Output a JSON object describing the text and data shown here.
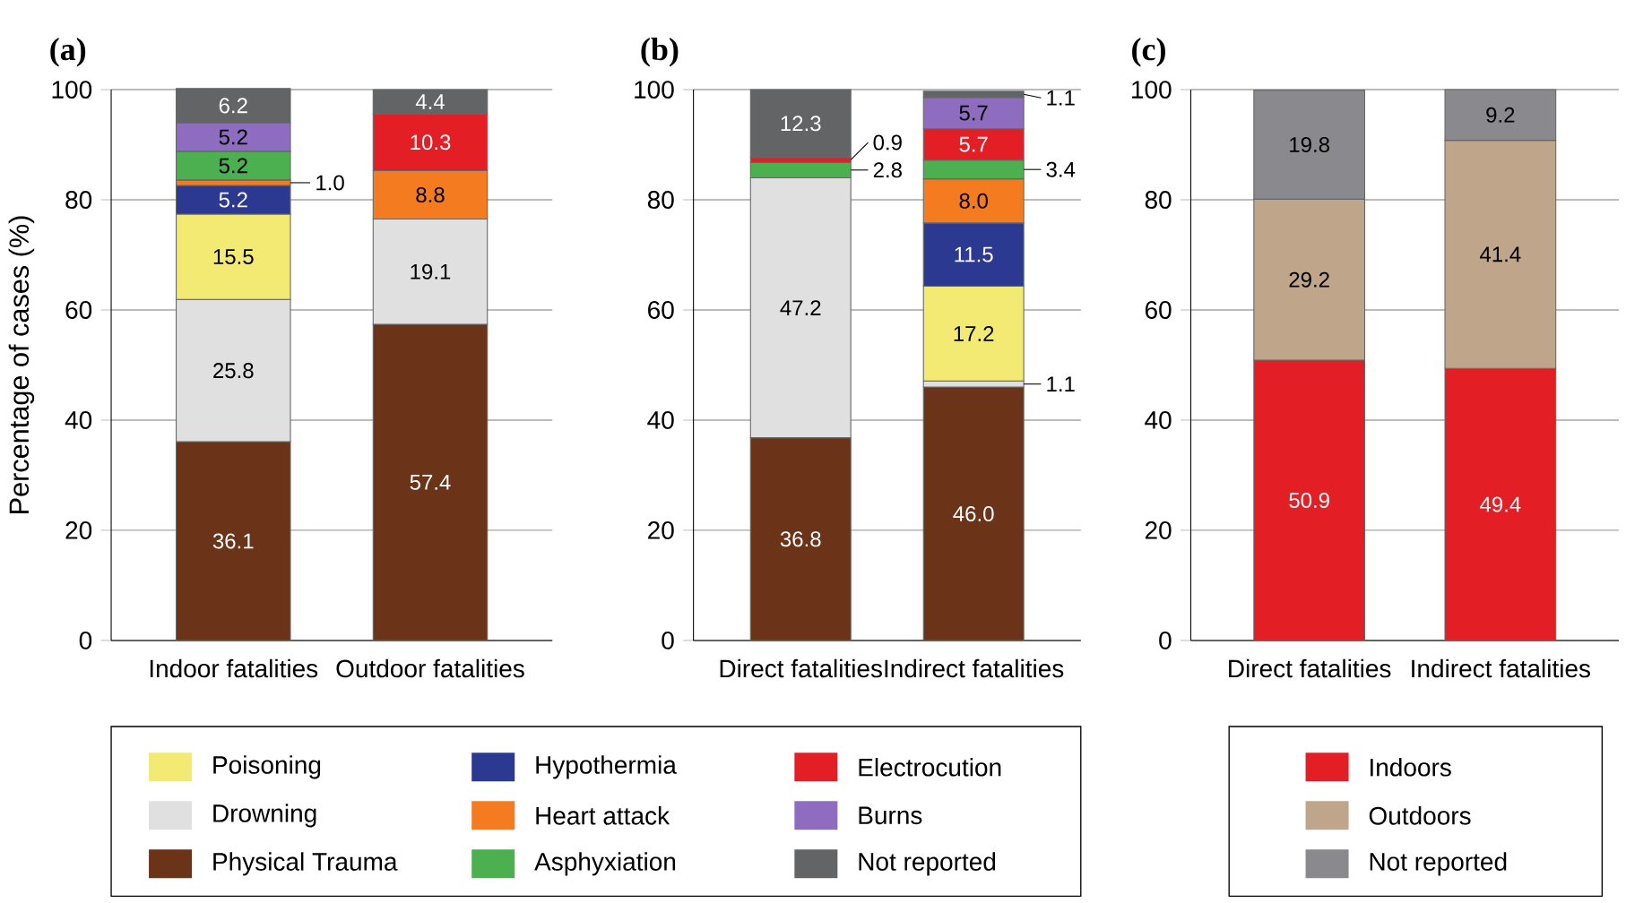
{
  "chart_data": [
    {
      "type": "bar",
      "stacked": true,
      "title": "(a)",
      "ylabel": "Percentage of cases (%)",
      "categories": [
        "Indoor fatalities",
        "Outdoor fatalities"
      ],
      "ylim": [
        0,
        100
      ],
      "yticks": [
        0,
        20,
        40,
        60,
        80,
        100
      ],
      "grid": "y",
      "legend": "bottom",
      "series": [
        {
          "name": "Physical Trauma",
          "color": "#6b3318",
          "values": [
            36.1,
            57.4
          ],
          "value_labels": [
            "36.1",
            "57.4"
          ]
        },
        {
          "name": "Drowning",
          "color": "#e0e0e0",
          "values": [
            25.8,
            19.1
          ],
          "value_labels": [
            "25.8",
            "19.1"
          ]
        },
        {
          "name": "Poisoning",
          "color": "#f2ea73",
          "values": [
            15.5,
            null
          ],
          "value_labels": [
            "15.5",
            null
          ]
        },
        {
          "name": "Hypothermia",
          "color": "#2b3990",
          "values": [
            5.2,
            null
          ],
          "value_labels": [
            "5.2",
            null
          ]
        },
        {
          "name": "Heart attack",
          "color": "#f47b20",
          "values": [
            1.0,
            8.8
          ],
          "value_labels": [
            "1.0",
            "8.8"
          ]
        },
        {
          "name": "Asphyxiation",
          "color": "#4caf50",
          "values": [
            5.2,
            null
          ],
          "value_labels": [
            "5.2",
            null
          ]
        },
        {
          "name": "Electrocution",
          "color": "#e31e24",
          "values": [
            null,
            10.3
          ],
          "value_labels": [
            null,
            "10.3"
          ]
        },
        {
          "name": "Burns",
          "color": "#8e6cc0",
          "values": [
            5.2,
            null
          ],
          "value_labels": [
            "5.2",
            null
          ]
        },
        {
          "name": "Not reported",
          "color": "#636466",
          "values": [
            6.2,
            4.4
          ],
          "value_labels": [
            "6.2",
            "4.4"
          ]
        }
      ]
    },
    {
      "type": "bar",
      "stacked": true,
      "title": "(b)",
      "categories": [
        "Direct fatalities",
        "Indirect fatalities"
      ],
      "ylim": [
        0,
        100
      ],
      "yticks": [
        0,
        20,
        40,
        60,
        80,
        100
      ],
      "grid": "y",
      "series": [
        {
          "color": "#6b3318",
          "values": [
            36.8,
            46.0
          ],
          "value_labels": [
            "36.8",
            "46.0"
          ]
        },
        {
          "color": "#e0e0e0",
          "values": [
            47.2,
            1.1
          ],
          "value_labels": [
            "47.2",
            "1.1"
          ]
        },
        {
          "color": "#f2ea73",
          "values": [
            null,
            17.2
          ],
          "value_labels": [
            null,
            "17.2"
          ]
        },
        {
          "color": "#2b3990",
          "values": [
            null,
            11.5
          ],
          "value_labels": [
            null,
            "11.5"
          ]
        },
        {
          "color": "#f47b20",
          "values": [
            null,
            8.0
          ],
          "value_labels": [
            null,
            "8.0"
          ]
        },
        {
          "color": "#4caf50",
          "values": [
            2.8,
            3.4
          ],
          "value_labels": [
            "2.8",
            "3.4"
          ]
        },
        {
          "color": "#e31e24",
          "values": [
            0.9,
            5.7
          ],
          "value_labels": [
            "0.9",
            "5.7"
          ]
        },
        {
          "color": "#8e6cc0",
          "values": [
            null,
            5.7
          ],
          "value_labels": [
            null,
            "5.7"
          ]
        },
        {
          "color": "#636466",
          "values": [
            12.3,
            1.1
          ],
          "value_labels": [
            "12.3",
            "1.1"
          ]
        }
      ]
    },
    {
      "type": "bar",
      "stacked": true,
      "title": "(c)",
      "categories": [
        "Direct fatalities",
        "Indirect fatalities"
      ],
      "ylim": [
        0,
        100
      ],
      "yticks": [
        0,
        20,
        40,
        60,
        80,
        100
      ],
      "grid": "y",
      "legend": "bottom",
      "series": [
        {
          "name": "Indoors",
          "color": "#e31e24",
          "values": [
            50.9,
            49.4
          ],
          "value_labels": [
            "50.9",
            "49.4"
          ]
        },
        {
          "name": "Outdoors",
          "color": "#bfa68a",
          "values": [
            29.2,
            41.4
          ],
          "value_labels": [
            "29.2",
            "41.4"
          ]
        },
        {
          "name": "Not reported",
          "color": "#8a8a8e",
          "values": [
            19.8,
            9.2
          ],
          "value_labels": [
            "19.8",
            "9.2"
          ]
        }
      ]
    }
  ]
}
